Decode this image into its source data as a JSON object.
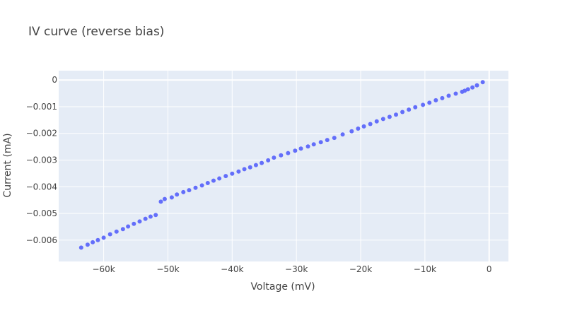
{
  "chart_data": {
    "type": "scatter",
    "title": "IV curve (reverse bias)",
    "xlabel": "Voltage (mV)",
    "ylabel": "Current (mA)",
    "xlim": [
      -67000,
      3000
    ],
    "ylim": [
      -0.0068,
      0.00035
    ],
    "x_ticks": [
      -60000,
      -50000,
      -40000,
      -30000,
      -20000,
      -10000,
      0
    ],
    "x_tick_labels": [
      "−60k",
      "−50k",
      "−40k",
      "−30k",
      "−20k",
      "−10k",
      "0"
    ],
    "y_ticks": [
      0,
      -0.001,
      -0.002,
      -0.003,
      -0.004,
      -0.005,
      -0.006
    ],
    "y_tick_labels": [
      "0",
      "−0.001",
      "−0.002",
      "−0.003",
      "−0.004",
      "−0.005",
      "−0.006"
    ],
    "grid": true,
    "colors": {
      "marker": "#636efa",
      "plot_bg": "#e5ecf6",
      "grid": "#ffffff",
      "text": "#444444"
    },
    "series": [
      {
        "x": [
          -63500,
          -62500,
          -61700,
          -60900,
          -60000,
          -59000,
          -58000,
          -57000,
          -56200,
          -55300,
          -54400,
          -53500,
          -52700,
          -51900,
          -51100,
          -50500,
          -49400,
          -48600,
          -47600,
          -46700,
          -45700,
          -44700,
          -43800,
          -42900,
          -42000,
          -41000,
          -40000,
          -39000,
          -38100,
          -37200,
          -36300,
          -35400,
          -34400,
          -33500,
          -32400,
          -31300,
          -30200,
          -29300,
          -28200,
          -27300,
          -26200,
          -25200,
          -24100,
          -22800,
          -21400,
          -20400,
          -19500,
          -18500,
          -17500,
          -16500,
          -15500,
          -14500,
          -13500,
          -12500,
          -11500,
          -10300,
          -9300,
          -8300,
          -7300,
          -6300,
          -5200,
          -4200,
          -3800,
          -3300,
          -2600,
          -1900,
          -1000
        ],
        "y": [
          -0.00628,
          -0.00617,
          -0.00608,
          -0.006,
          -0.00591,
          -0.00578,
          -0.00568,
          -0.00559,
          -0.00549,
          -0.00539,
          -0.0053,
          -0.0052,
          -0.00512,
          -0.00506,
          -0.00456,
          -0.00446,
          -0.0044,
          -0.00429,
          -0.0042,
          -0.00413,
          -0.00404,
          -0.00395,
          -0.00386,
          -0.00377,
          -0.00369,
          -0.0036,
          -0.00351,
          -0.00343,
          -0.00334,
          -0.00327,
          -0.00319,
          -0.00311,
          -0.00301,
          -0.00291,
          -0.00282,
          -0.00274,
          -0.00265,
          -0.00257,
          -0.00249,
          -0.00241,
          -0.00233,
          -0.00225,
          -0.00217,
          -0.00204,
          -0.00192,
          -0.00182,
          -0.00174,
          -0.00165,
          -0.00155,
          -0.00146,
          -0.00138,
          -0.0013,
          -0.0012,
          -0.00111,
          -0.00102,
          -0.00093,
          -0.00085,
          -0.00076,
          -0.00068,
          -0.00059,
          -0.00051,
          -0.00044,
          -0.0004,
          -0.00035,
          -0.00028,
          -0.0002,
          -8e-05
        ]
      }
    ]
  }
}
